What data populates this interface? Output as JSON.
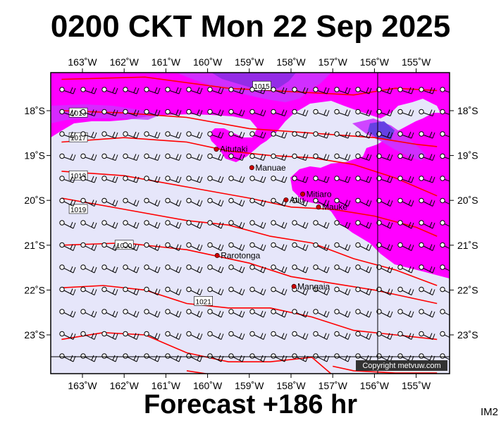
{
  "title": "0200 CKT Mon 22 Sep 2025",
  "footer": "Forecast +186 hr",
  "image_code": "IM2",
  "copyright": "Copyright metvuw.com",
  "lon_labels": [
    "163˚W",
    "162˚W",
    "161˚W",
    "160˚W",
    "159˚W",
    "158˚W",
    "157˚W",
    "156˚W",
    "155˚W"
  ],
  "lat_labels": [
    "18˚S",
    "19˚S",
    "20˚S",
    "21˚S",
    "22˚S",
    "23˚S"
  ],
  "colors": {
    "land_sea_background": "#e6e6fa",
    "rain_light": "#ff00ff",
    "rain_medium": "#cc33ff",
    "rain_heavy": "#8a2be2",
    "rain_very_heavy": "#5a3fe0",
    "isobar": "#ff0000",
    "place_marker": "#cc0000"
  },
  "places": [
    {
      "name": "Aitutaki",
      "lon": -159.79,
      "lat": -18.86
    },
    {
      "name": "Manuae",
      "lon": -158.94,
      "lat": -19.27
    },
    {
      "name": "Atiu",
      "lon": -158.12,
      "lat": -19.99
    },
    {
      "name": "Mitiaro",
      "lon": -157.72,
      "lat": -19.86
    },
    {
      "name": "Mauke",
      "lon": -157.34,
      "lat": -20.15
    },
    {
      "name": "Rarotonga",
      "lon": -159.77,
      "lat": -21.23
    },
    {
      "name": "Mangaia",
      "lon": -157.93,
      "lat": -21.92
    }
  ],
  "isobars": [
    {
      "label": "1015",
      "points": [
        [
          -163.5,
          -17.3
        ],
        [
          -161.5,
          -17.25
        ],
        [
          -159.5,
          -17.5
        ],
        [
          -158.5,
          -17.55
        ],
        [
          -157.5,
          -17.6
        ],
        [
          -156.5,
          -17.65
        ],
        [
          -155.5,
          -17.5
        ],
        [
          -154.5,
          -17.55
        ]
      ]
    },
    {
      "label": "1016",
      "points": [
        [
          -163.5,
          -18.0
        ],
        [
          -162.0,
          -18.05
        ],
        [
          -160.5,
          -18.15
        ],
        [
          -159.0,
          -18.4
        ],
        [
          -157.5,
          -18.5
        ],
        [
          -156.0,
          -18.6
        ],
        [
          -155.0,
          -18.75
        ],
        [
          -154.5,
          -18.8
        ]
      ]
    },
    {
      "label": "1017",
      "points": [
        [
          -163.5,
          -18.7
        ],
        [
          -162.0,
          -18.6
        ],
        [
          -160.5,
          -18.7
        ],
        [
          -159.5,
          -18.9
        ],
        [
          -158.5,
          -19.0
        ],
        [
          -157.5,
          -19.05
        ],
        [
          -156.5,
          -19.2
        ],
        [
          -155.5,
          -19.5
        ],
        [
          -154.5,
          -19.9
        ]
      ]
    },
    {
      "label": "1018",
      "points": [
        [
          -163.5,
          -19.35
        ],
        [
          -162.0,
          -19.45
        ],
        [
          -160.5,
          -19.7
        ],
        [
          -159.0,
          -19.95
        ],
        [
          -158.0,
          -20.15
        ],
        [
          -157.0,
          -20.2
        ],
        [
          -156.0,
          -20.35
        ],
        [
          -155.0,
          -20.6
        ],
        [
          -154.5,
          -20.8
        ]
      ]
    },
    {
      "label": "1019",
      "points": [
        [
          -163.5,
          -19.95
        ],
        [
          -162.0,
          -20.2
        ],
        [
          -160.5,
          -20.45
        ],
        [
          -159.5,
          -20.55
        ],
        [
          -158.5,
          -20.8
        ],
        [
          -157.5,
          -20.95
        ],
        [
          -156.5,
          -21.3
        ],
        [
          -155.5,
          -21.55
        ],
        [
          -154.5,
          -21.9
        ]
      ]
    },
    {
      "label": "1020",
      "points": [
        [
          -163.5,
          -21.0
        ],
        [
          -162.0,
          -20.95
        ],
        [
          -160.5,
          -21.1
        ],
        [
          -159.0,
          -21.4
        ],
        [
          -158.0,
          -21.7
        ],
        [
          -157.0,
          -21.85
        ],
        [
          -156.0,
          -22.0
        ],
        [
          -155.0,
          -22.2
        ],
        [
          -154.5,
          -22.3
        ]
      ]
    },
    {
      "label": "1021",
      "points": [
        [
          -163.5,
          -21.95
        ],
        [
          -162.5,
          -21.9
        ],
        [
          -161.5,
          -22.0
        ],
        [
          -160.5,
          -22.3
        ],
        [
          -159.5,
          -22.4
        ],
        [
          -158.5,
          -22.4
        ],
        [
          -157.5,
          -22.6
        ],
        [
          -156.5,
          -22.9
        ],
        [
          -155.5,
          -23.0
        ],
        [
          -154.5,
          -23.1
        ]
      ]
    },
    {
      "label": "",
      "points": [
        [
          -163.5,
          -23.1
        ],
        [
          -162.5,
          -22.95
        ],
        [
          -161.5,
          -23.0
        ],
        [
          -160.5,
          -23.4
        ],
        [
          -159.5,
          -23.6
        ],
        [
          -158.5,
          -23.6
        ],
        [
          -157.5,
          -23.5
        ],
        [
          -157.0,
          -23.9
        ]
      ]
    },
    {
      "label": "",
      "points": [
        [
          -157.0,
          -23.7
        ],
        [
          -156.5,
          -23.8
        ],
        [
          -155.5,
          -23.85
        ],
        [
          -154.5,
          -23.85
        ]
      ]
    },
    {
      "label": "",
      "points": [
        [
          -160.5,
          -23.8
        ],
        [
          -159.8,
          -23.9
        ]
      ]
    }
  ]
}
